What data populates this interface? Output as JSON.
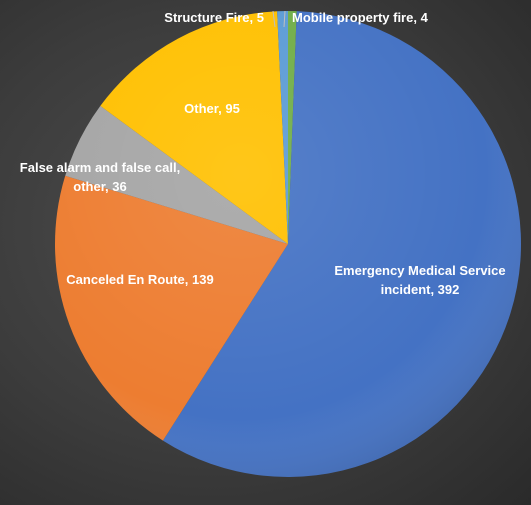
{
  "chart_data": {
    "type": "pie",
    "title": "",
    "start_category": "Mobile property fire",
    "direction": "clockwise",
    "legend": "none",
    "categories": [
      "Mobile property fire",
      "Emergency Medical Service incident",
      "Canceled En Route",
      "False alarm and false call, other",
      "Other",
      "Structure Fire"
    ],
    "values": [
      4,
      392,
      139,
      36,
      95,
      5
    ],
    "colors": [
      "#70ad47",
      "#4472c4",
      "#ed7d31",
      "#a5a5a5",
      "#ffc000",
      "#5b9bd5"
    ],
    "data_labels": [
      [
        "Mobile property fire, 4"
      ],
      [
        "Emergency Medical Service",
        "incident, 392"
      ],
      [
        "Canceled En Route, 139"
      ],
      [
        "False alarm and false call,",
        "other, 36"
      ],
      [
        "Other, 95"
      ],
      [
        "Structure Fire, 5"
      ]
    ]
  }
}
